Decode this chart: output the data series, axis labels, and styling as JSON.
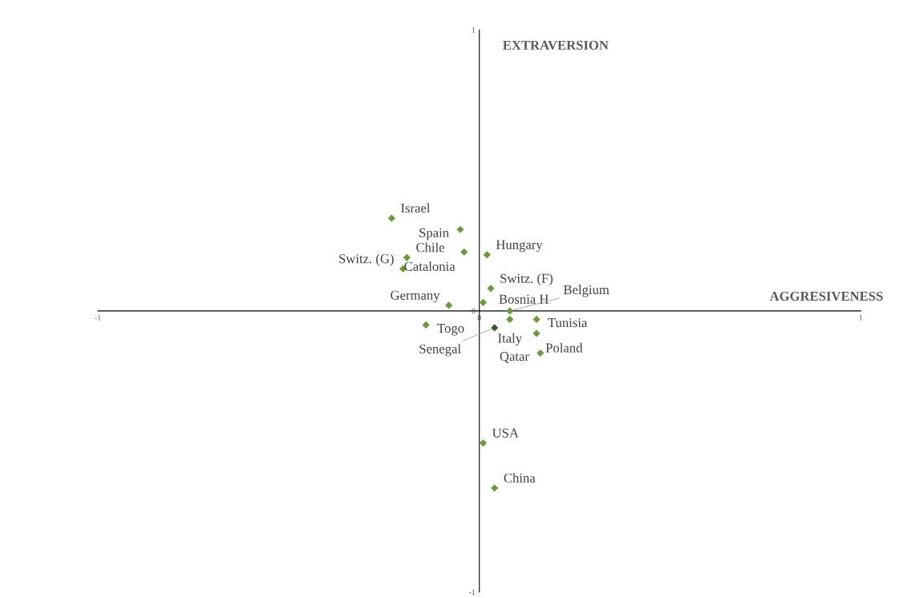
{
  "chart_data": {
    "type": "scatter",
    "xlabel": "AGGRESIVENESS",
    "ylabel": "EXTRAVERSION",
    "x": [
      -0.23,
      -0.05,
      -0.19,
      -0.04,
      0.02,
      -0.2,
      0.03,
      -0.08,
      0.01,
      0.08,
      0.08,
      -0.14,
      0.04,
      0.15,
      0.15,
      0.16,
      0.01,
      0.04
    ],
    "values": [
      0.33,
      0.29,
      0.19,
      0.21,
      0.2,
      0.15,
      0.08,
      0.02,
      0.03,
      0.0,
      -0.03,
      -0.05,
      -0.06,
      -0.03,
      -0.08,
      -0.15,
      -0.47,
      -0.63
    ],
    "colors": [
      "#6a9a3a",
      "#6a9a3a",
      "#6a9a3a",
      "#6a9a3a",
      "#6a9a3a",
      "#6a9a3a",
      "#6a9a3a",
      "#6a9a3a",
      "#6a9a3a",
      "#6a9a3a",
      "#6a9a3a",
      "#6a9a3a",
      "#3d5a25",
      "#6a9a3a",
      "#6a9a3a",
      "#6a9a3a",
      "#6a9a3a",
      "#6a9a3a"
    ],
    "annotations": [
      {
        "text": "Israel",
        "x": -0.23,
        "y": 0.33
      },
      {
        "text": "Spain",
        "x": -0.05,
        "y": 0.29
      },
      {
        "text": "Chile",
        "x": -0.19,
        "y": 0.19
      },
      {
        "text": "Catalonia",
        "x": -0.04,
        "y": 0.21
      },
      {
        "text": "Hungary",
        "x": 0.02,
        "y": 0.2
      },
      {
        "text": "Switz. (G)",
        "x": -0.2,
        "y": 0.15
      },
      {
        "text": "Switz. (F)",
        "x": 0.03,
        "y": 0.08
      },
      {
        "text": "Germany",
        "x": -0.08,
        "y": 0.02
      },
      {
        "text": "Bosnia H",
        "x": 0.01,
        "y": 0.03
      },
      {
        "text": "Belgium",
        "x": 0.08,
        "y": 0.0
      },
      {
        "text": "Italy",
        "x": 0.08,
        "y": -0.03
      },
      {
        "text": "Togo",
        "x": -0.14,
        "y": -0.05
      },
      {
        "text": "Senegal",
        "x": 0.04,
        "y": -0.06
      },
      {
        "text": "Tunisia",
        "x": 0.15,
        "y": -0.03
      },
      {
        "text": "Poland",
        "x": 0.15,
        "y": -0.08
      },
      {
        "text": "Qatar",
        "x": 0.16,
        "y": -0.15
      },
      {
        "text": "USA",
        "x": 0.01,
        "y": -0.47
      },
      {
        "text": "China",
        "x": 0.04,
        "y": -0.63
      }
    ],
    "xlim": [
      -1,
      1
    ],
    "ylim": [
      -1,
      1
    ],
    "xticks": [
      -1,
      0,
      1
    ],
    "yticks": [
      -1,
      0,
      1
    ],
    "marker": "diamond",
    "grid": false,
    "legend": false
  }
}
